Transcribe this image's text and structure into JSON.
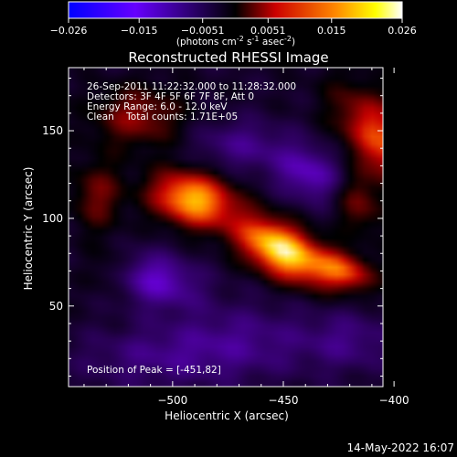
{
  "colorbar": {
    "ticks": [
      "-0.026",
      "-0.015",
      "-0.0051",
      "0.0051",
      "0.015",
      "0.026"
    ],
    "tick_values": [
      -0.026,
      -0.015,
      -0.0051,
      0.0051,
      0.015,
      0.026
    ],
    "range": [
      -0.026,
      0.026
    ],
    "units_main": "(photons cm",
    "units_exp1": "-2",
    "units_mid": " s",
    "units_exp2": "-1",
    "units_mid2": " asec",
    "units_exp3": "-2",
    "units_end": ")",
    "colors": [
      "#0000ff",
      "#7f00ff",
      "#000000",
      "#ff0000",
      "#ffff00",
      "#ffffff"
    ]
  },
  "chart_data": {
    "type": "heatmap",
    "title": "Reconstructed RHESSI Image",
    "xlabel": "Heliocentric X (arcsec)",
    "ylabel": "Heliocentric Y (arcsec)",
    "xlim": [
      -547,
      -405
    ],
    "ylim": [
      4,
      186
    ],
    "x_ticks": [
      -500,
      -450,
      -400
    ],
    "y_ticks": [
      50,
      100,
      150
    ],
    "x_tick_labels": [
      "−500",
      "−450",
      "−400"
    ],
    "y_tick_labels": [
      "50",
      "100",
      "150"
    ],
    "info_lines": [
      "26-Sep-2011 11:22:32.000 to 11:28:32.000",
      "Detectors: 3F 4F 5F 6F 7F 8F, Att 0",
      "Energy Range: 6.0 - 12.0 keV",
      "Clean    Total counts: 1.71E+05"
    ],
    "peak_label": "Position of Peak = [-451,82]",
    "peak": [
      -451,
      82
    ],
    "sources": [
      {
        "x": -451,
        "y": 82,
        "amplitude": 1.0,
        "sx": 16,
        "sy": 9,
        "angle": -40
      },
      {
        "x": -491,
        "y": 111,
        "amplitude": 0.85,
        "sx": 13,
        "sy": 10,
        "angle": -25
      },
      {
        "x": -423,
        "y": 70,
        "amplitude": 0.55,
        "sx": 10,
        "sy": 7,
        "angle": -30
      },
      {
        "x": -405,
        "y": 144,
        "amplitude": 0.6,
        "sx": 10,
        "sy": 22,
        "angle": 30
      },
      {
        "x": -418,
        "y": 112,
        "amplitude": 0.35,
        "sx": 8,
        "sy": 14,
        "angle": 20
      },
      {
        "x": -516,
        "y": 158,
        "amplitude": 0.35,
        "sx": 14,
        "sy": 12,
        "angle": 0
      },
      {
        "x": -534,
        "y": 113,
        "amplitude": 0.3,
        "sx": 8,
        "sy": 14,
        "angle": 0
      },
      {
        "x": -527,
        "y": 70,
        "amplitude": 0.18,
        "sx": 8,
        "sy": 10,
        "angle": 0
      },
      {
        "x": -508,
        "y": 65,
        "amplitude": -0.45,
        "sx": 14,
        "sy": 10,
        "angle": -20
      },
      {
        "x": -436,
        "y": 125,
        "amplitude": -0.45,
        "sx": 14,
        "sy": 10,
        "angle": -35
      },
      {
        "x": -470,
        "y": 142,
        "amplitude": -0.25,
        "sx": 14,
        "sy": 10,
        "angle": 0
      },
      {
        "x": -470,
        "y": 30,
        "amplitude": -0.25,
        "sx": 25,
        "sy": 15,
        "angle": 0
      },
      {
        "x": -420,
        "y": 30,
        "amplitude": -0.22,
        "sx": 14,
        "sy": 12,
        "angle": 0
      },
      {
        "x": -510,
        "y": 20,
        "amplitude": -0.2,
        "sx": 25,
        "sy": 12,
        "angle": 0
      }
    ]
  },
  "timestamp": "14-May-2022 16:07"
}
